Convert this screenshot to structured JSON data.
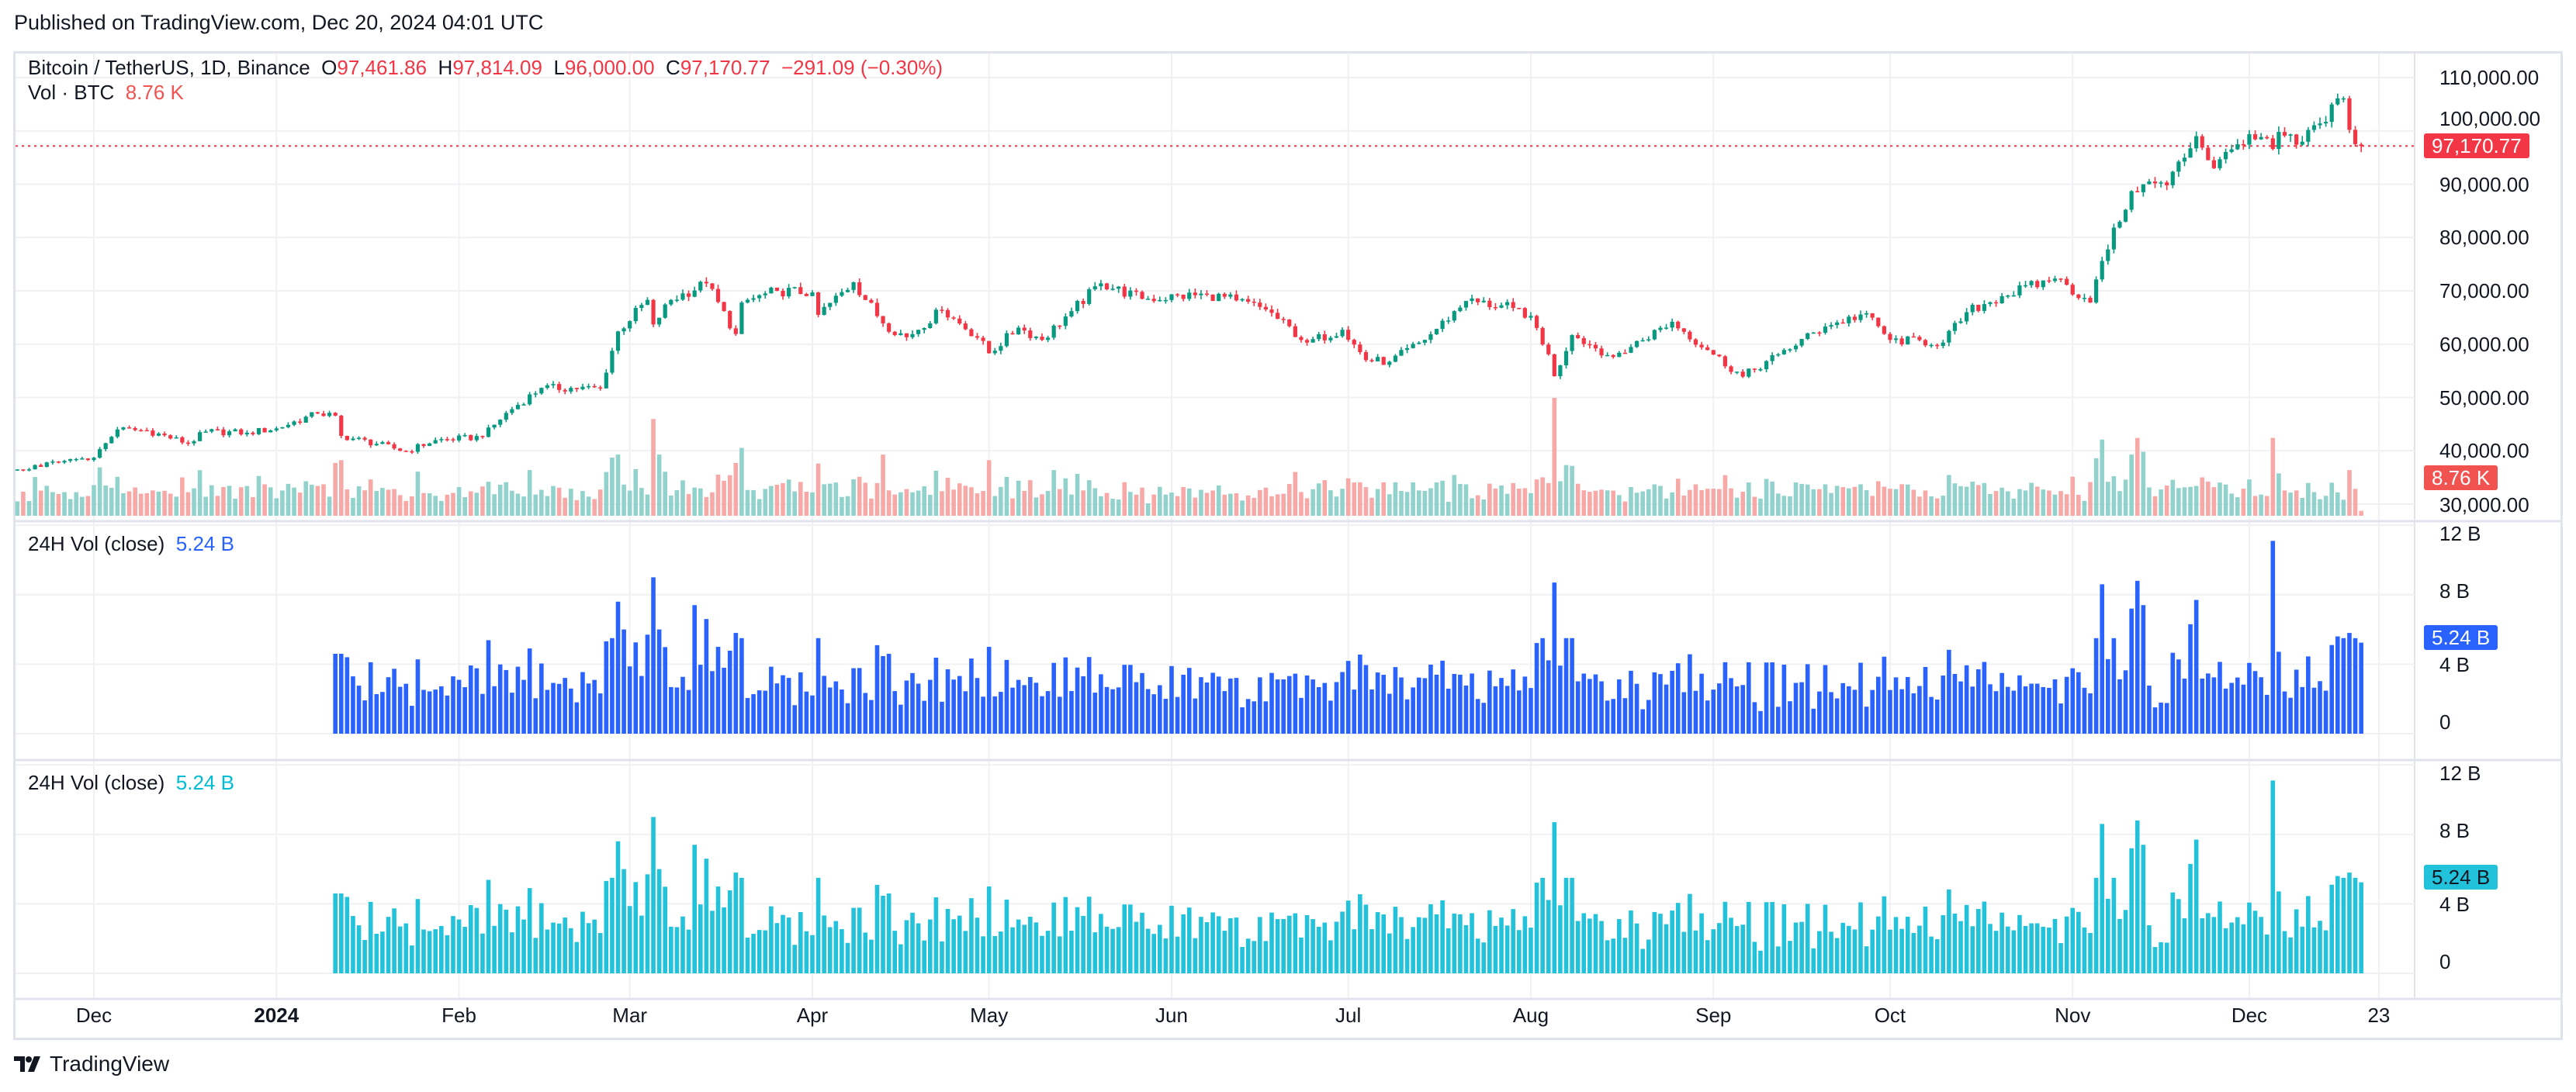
{
  "header": {
    "published": "Published on TradingView.com, Dec 20, 2024 04:01 UTC"
  },
  "legend": {
    "symbol": "Bitcoin / TetherUS, 1D, Binance",
    "o_label": "O",
    "o": "97,461.86",
    "h_label": "H",
    "h": "97,814.09",
    "l_label": "L",
    "l": "96,000.00",
    "c_label": "C",
    "c": "97,170.77",
    "change": "−291.09 (−0.30%)",
    "vol_label": "Vol · BTC",
    "vol_value": "8.76 K",
    "pane2_label": "24H Vol (close)",
    "pane2_value": "5.24 B",
    "pane3_label": "24H Vol (close)",
    "pane3_value": "5.24 B"
  },
  "price_axis": {
    "ticks": [
      "110,000.00",
      "100,000.00",
      "90,000.00",
      "80,000.00",
      "70,000.00",
      "60,000.00",
      "50,000.00",
      "40,000.00",
      "30,000.00"
    ],
    "last_price_tag": "97,170.77",
    "vol_tag": "8.76 K"
  },
  "vol_axis": {
    "ticks": [
      "12 B",
      "8 B",
      "4 B",
      "0"
    ],
    "tag": "5.24 B"
  },
  "vol_axis2": {
    "ticks": [
      "12 B",
      "8 B",
      "4 B",
      "0"
    ],
    "tag": "5.24 B"
  },
  "time_axis": [
    {
      "label": "Dec",
      "date": "2023-12-01"
    },
    {
      "label": "2024",
      "date": "2024-01-01",
      "bold": true
    },
    {
      "label": "Feb",
      "date": "2024-02-01"
    },
    {
      "label": "Mar",
      "date": "2024-03-01"
    },
    {
      "label": "Apr",
      "date": "2024-04-01"
    },
    {
      "label": "May",
      "date": "2024-05-01"
    },
    {
      "label": "Jun",
      "date": "2024-06-01"
    },
    {
      "label": "Jul",
      "date": "2024-07-01"
    },
    {
      "label": "Aug",
      "date": "2024-08-01"
    },
    {
      "label": "Sep",
      "date": "2024-09-01"
    },
    {
      "label": "Oct",
      "date": "2024-10-01"
    },
    {
      "label": "Nov",
      "date": "2024-11-01"
    },
    {
      "label": "Dec",
      "date": "2024-12-01"
    },
    {
      "label": "23",
      "date": "2024-12-23"
    }
  ],
  "footer": {
    "brand": "TradingView"
  },
  "colors": {
    "up": "#089981",
    "down": "#f23645",
    "vol_up": "#92d2cc",
    "vol_down": "#f7a9a7",
    "pane2": "#2962ff",
    "pane3": "#22c3da"
  },
  "chart_data": {
    "type": "candlestick",
    "title": "Bitcoin / TetherUS, 1D, Binance",
    "start": "2023-11-18",
    "end": "2024-12-20",
    "ylim": [
      30000,
      110000
    ],
    "last_candle": {
      "open": 97461.86,
      "high": 97814.09,
      "low": 96000.0,
      "close": 97170.77,
      "volume_k": 8.76
    },
    "close_anchors": [
      [
        "2023-11-18",
        36500
      ],
      [
        "2023-11-25",
        37800
      ],
      [
        "2023-12-01",
        38700
      ],
      [
        "2023-12-05",
        44000
      ],
      [
        "2023-12-10",
        43800
      ],
      [
        "2023-12-17",
        41400
      ],
      [
        "2023-12-20",
        43600
      ],
      [
        "2023-12-27",
        43400
      ],
      [
        "2024-01-01",
        44200
      ],
      [
        "2024-01-08",
        47000
      ],
      [
        "2024-01-11",
        46600
      ],
      [
        "2024-01-12",
        42800
      ],
      [
        "2024-01-18",
        41300
      ],
      [
        "2024-01-23",
        39900
      ],
      [
        "2024-01-28",
        42000
      ],
      [
        "2024-02-05",
        42600
      ],
      [
        "2024-02-09",
        47100
      ],
      [
        "2024-02-15",
        51800
      ],
      [
        "2024-02-25",
        51700
      ],
      [
        "2024-02-28",
        62400
      ],
      [
        "2024-03-04",
        68300
      ],
      [
        "2024-03-05",
        63700
      ],
      [
        "2024-03-08",
        68300
      ],
      [
        "2024-03-14",
        71400
      ],
      [
        "2024-03-19",
        61900
      ],
      [
        "2024-03-20",
        67800
      ],
      [
        "2024-03-26",
        70000
      ],
      [
        "2024-04-01",
        69700
      ],
      [
        "2024-04-02",
        65500
      ],
      [
        "2024-04-08",
        71600
      ],
      [
        "2024-04-13",
        63900
      ],
      [
        "2024-04-17",
        61300
      ],
      [
        "2024-04-23",
        66400
      ],
      [
        "2024-04-30",
        60600
      ],
      [
        "2024-05-01",
        58300
      ],
      [
        "2024-05-06",
        63100
      ],
      [
        "2024-05-10",
        60800
      ],
      [
        "2024-05-15",
        66200
      ],
      [
        "2024-05-20",
        71400
      ],
      [
        "2024-05-27",
        68500
      ],
      [
        "2024-06-07",
        69300
      ],
      [
        "2024-06-12",
        68200
      ],
      [
        "2024-06-17",
        66500
      ],
      [
        "2024-06-24",
        60300
      ],
      [
        "2024-06-30",
        62700
      ],
      [
        "2024-07-04",
        57000
      ],
      [
        "2024-07-08",
        56700
      ],
      [
        "2024-07-14",
        60800
      ],
      [
        "2024-07-21",
        68100
      ],
      [
        "2024-07-29",
        66800
      ],
      [
        "2024-08-01",
        65300
      ],
      [
        "2024-08-04",
        58100
      ],
      [
        "2024-08-05",
        54000
      ],
      [
        "2024-08-08",
        61700
      ],
      [
        "2024-08-15",
        57600
      ],
      [
        "2024-08-25",
        64200
      ],
      [
        "2024-08-31",
        58900
      ],
      [
        "2024-09-06",
        53900
      ],
      [
        "2024-09-12",
        58100
      ],
      [
        "2024-09-20",
        63300
      ],
      [
        "2024-09-27",
        65800
      ],
      [
        "2024-10-01",
        60800
      ],
      [
        "2024-10-10",
        60300
      ],
      [
        "2024-10-14",
        66000
      ],
      [
        "2024-10-20",
        69000
      ],
      [
        "2024-10-29",
        72300
      ],
      [
        "2024-11-03",
        68700
      ],
      [
        "2024-11-04",
        67800
      ],
      [
        "2024-11-06",
        75600
      ],
      [
        "2024-11-11",
        88700
      ],
      [
        "2024-11-13",
        90000
      ],
      [
        "2024-11-17",
        89800
      ],
      [
        "2024-11-22",
        99000
      ],
      [
        "2024-11-25",
        93000
      ],
      [
        "2024-11-29",
        97500
      ],
      [
        "2024-12-04",
        98600
      ],
      [
        "2024-12-05",
        96600
      ],
      [
        "2024-12-06",
        99800
      ],
      [
        "2024-12-09",
        97400
      ],
      [
        "2024-12-13",
        101400
      ],
      [
        "2024-12-16",
        106100
      ],
      [
        "2024-12-17",
        106100
      ],
      [
        "2024-12-18",
        100200
      ],
      [
        "2024-12-19",
        97500
      ],
      [
        "2024-12-20",
        97170.77
      ]
    ],
    "volume_btc_k_spikes": {
      "2023-12-05": 70,
      "2024-01-11": 95,
      "2024-01-12": 100,
      "2024-02-28": 110,
      "2024-03-05": 174,
      "2024-03-06": 110,
      "2024-03-19": 95,
      "2024-04-13": 110,
      "2024-05-01": 100,
      "2024-08-05": 212,
      "2024-11-06": 137,
      "2024-11-11": 110,
      "2024-11-12": 140,
      "2024-11-13": 115,
      "2024-12-05": 140,
      "2024-12-20": 8.76
    },
    "vol24h_start": "2024-01-11",
    "vol24h_b_spikes": {
      "2024-01-11": 4.6,
      "2024-01-12": 4.6,
      "2024-01-13": 4.4,
      "2024-01-14": 3.3,
      "2024-02-28": 7.6,
      "2024-02-29": 6.0,
      "2024-03-04": 5.7,
      "2024-03-05": 9.0,
      "2024-03-06": 6.0,
      "2024-03-12": 7.4,
      "2024-03-14": 6.6,
      "2024-03-19": 5.8,
      "2024-05-01": 5.0,
      "2024-08-05": 8.7,
      "2024-11-06": 8.6,
      "2024-11-11": 7.2,
      "2024-11-12": 8.8,
      "2024-11-13": 7.4,
      "2024-11-21": 6.3,
      "2024-11-22": 7.7,
      "2024-12-05": 11.1,
      "2024-12-16": 5.6,
      "2024-12-17": 5.5,
      "2024-12-18": 5.8,
      "2024-12-19": 5.5,
      "2024-12-20": 5.24
    },
    "pane2_ylim": [
      0,
      12
    ],
    "pane3_ylim": [
      0,
      12
    ],
    "vol_unit": "B"
  }
}
